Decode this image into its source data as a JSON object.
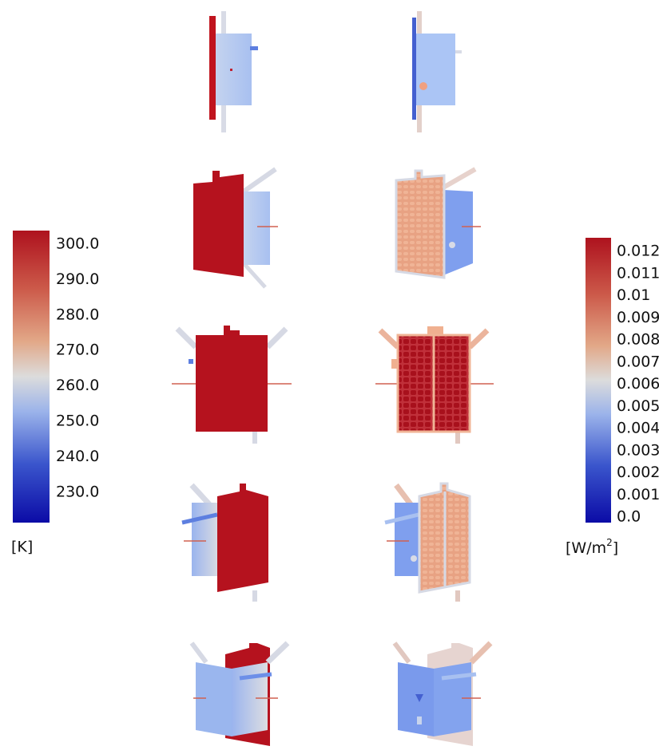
{
  "left_colorbar": {
    "ticks": [
      "300.0",
      "290.0",
      "280.0",
      "270.0",
      "260.0",
      "250.0",
      "240.0",
      "230.0"
    ],
    "unit": "[K]"
  },
  "right_colorbar": {
    "ticks": [
      "0.012",
      "0.011",
      "0.01",
      "0.009",
      "0.008",
      "0.007",
      "0.006",
      "0.005",
      "0.004",
      "0.003",
      "0.002",
      "0.001",
      "0.0"
    ],
    "unit": {
      "base": "[W/m",
      "sup": "2",
      "close": "]"
    }
  }
}
